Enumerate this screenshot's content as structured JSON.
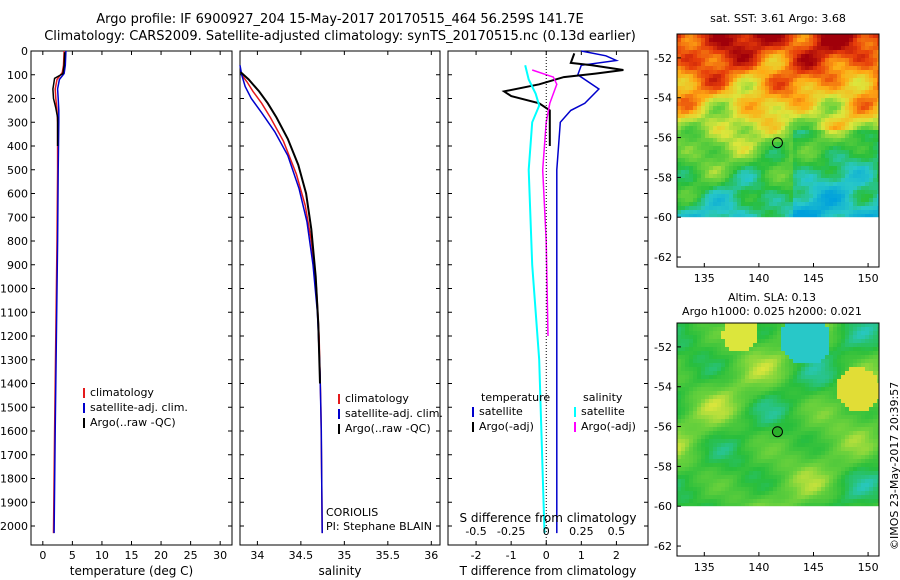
{
  "header": {
    "title_line1": "Argo profile: IF 6900927_204 15-May-2017 20170515_464 56.259S 141.7E",
    "title_line2": "Climatology: CARS2009. Satellite-adjusted climatology: synTS_20170515.nc (0.13d earlier)"
  },
  "footer": {
    "timestamp": "©IMOS 23-May-2017 20:39:57"
  },
  "colors": {
    "red": "#e41a1c",
    "blue": "#0000cc",
    "black": "#000000",
    "cyan": "#00ffff",
    "magenta": "#ff00ff"
  },
  "chart_data": [
    {
      "id": "temperature",
      "type": "line",
      "xlabel": "temperature (deg C)",
      "ylabel": "",
      "xlim": [
        -2,
        32
      ],
      "ylim": [
        2080,
        0
      ],
      "x_ticks": [
        0,
        5,
        10,
        15,
        20,
        25,
        30
      ],
      "y_ticks": [
        0,
        100,
        200,
        300,
        400,
        500,
        600,
        700,
        800,
        900,
        1000,
        1100,
        1200,
        1300,
        1400,
        1500,
        1600,
        1700,
        1800,
        1900,
        2000
      ],
      "legend": [
        "climatology",
        "satellite-adj. clim.",
        "Argo(..raw -QC)"
      ],
      "series": [
        {
          "name": "climatology",
          "color": "red",
          "width": 1.5,
          "points": [
            [
              3.6,
              0
            ],
            [
              3.5,
              60
            ],
            [
              3.3,
              90
            ],
            [
              2.4,
              120
            ],
            [
              2.1,
              160
            ],
            [
              2.2,
              200
            ],
            [
              2.4,
              250
            ],
            [
              2.5,
              300
            ],
            [
              2.5,
              500
            ],
            [
              2.4,
              800
            ],
            [
              2.2,
              1200
            ],
            [
              2.0,
              1600
            ],
            [
              1.8,
              2030
            ]
          ]
        },
        {
          "name": "satellite-adj. clim.",
          "color": "blue",
          "width": 1.5,
          "points": [
            [
              3.9,
              0
            ],
            [
              3.8,
              60
            ],
            [
              3.6,
              95
            ],
            [
              2.8,
              120
            ],
            [
              2.5,
              160
            ],
            [
              2.6,
              200
            ],
            [
              2.7,
              250
            ],
            [
              2.7,
              300
            ],
            [
              2.6,
              500
            ],
            [
              2.5,
              800
            ],
            [
              2.3,
              1200
            ],
            [
              2.1,
              1600
            ],
            [
              1.9,
              2030
            ]
          ]
        },
        {
          "name": "Argo(..raw -QC)",
          "color": "black",
          "width": 1.5,
          "points": [
            [
              3.7,
              5
            ],
            [
              3.6,
              60
            ],
            [
              3.4,
              95
            ],
            [
              2.0,
              115
            ],
            [
              1.7,
              160
            ],
            [
              1.8,
              200
            ],
            [
              2.2,
              240
            ],
            [
              2.5,
              280
            ],
            [
              2.5,
              400
            ]
          ]
        }
      ]
    },
    {
      "id": "salinity",
      "type": "line",
      "xlabel": "salinity",
      "ylabel": "",
      "xlim": [
        33.8,
        36.1
      ],
      "ylim": [
        2080,
        0
      ],
      "x_ticks": [
        34,
        34.5,
        35,
        35.5,
        36
      ],
      "x_tick_labels": [
        "34",
        "34.5",
        "35",
        "35.5",
        "36"
      ],
      "legend": [
        "climatology",
        "satellite-adj. clim.",
        "Argo(..raw -QC)"
      ],
      "annotation": [
        "CORIOLIS",
        "PI: Stephane BLAIN"
      ],
      "series": [
        {
          "name": "climatology",
          "color": "red",
          "width": 1.5,
          "points": [
            [
              33.82,
              100
            ],
            [
              33.88,
              130
            ],
            [
              33.95,
              170
            ],
            [
              34.05,
              220
            ],
            [
              34.15,
              280
            ],
            [
              34.3,
              380
            ],
            [
              34.45,
              520
            ],
            [
              34.55,
              650
            ],
            [
              34.62,
              800
            ],
            [
              34.68,
              1000
            ],
            [
              34.71,
              1200
            ],
            [
              34.73,
              1500
            ],
            [
              34.74,
              1800
            ],
            [
              34.745,
              2030
            ]
          ]
        },
        {
          "name": "satellite-adj. clim.",
          "color": "blue",
          "width": 1.5,
          "points": [
            [
              33.8,
              60
            ],
            [
              33.82,
              100
            ],
            [
              33.86,
              150
            ],
            [
              33.93,
              200
            ],
            [
              34.05,
              260
            ],
            [
              34.2,
              340
            ],
            [
              34.35,
              440
            ],
            [
              34.48,
              580
            ],
            [
              34.57,
              720
            ],
            [
              34.64,
              900
            ],
            [
              34.69,
              1100
            ],
            [
              34.72,
              1350
            ],
            [
              34.735,
              1600
            ],
            [
              34.74,
              1800
            ],
            [
              34.745,
              2030
            ]
          ]
        },
        {
          "name": "Argo(..raw -QC)",
          "color": "black",
          "width": 2,
          "points": [
            [
              33.81,
              90
            ],
            [
              33.9,
              120
            ],
            [
              34.02,
              170
            ],
            [
              34.12,
              220
            ],
            [
              34.22,
              280
            ],
            [
              34.35,
              370
            ],
            [
              34.47,
              480
            ],
            [
              34.56,
              600
            ],
            [
              34.62,
              750
            ],
            [
              34.67,
              950
            ],
            [
              34.7,
              1150
            ],
            [
              34.72,
              1400
            ]
          ]
        }
      ]
    },
    {
      "id": "difference",
      "type": "line",
      "xlabel": "T difference from climatology",
      "xlabel2": "S difference from climatology",
      "ylabel": "",
      "xlim": [
        -2.8,
        2.9
      ],
      "ylim": [
        2080,
        0
      ],
      "x_ticks": [
        -2,
        -1,
        0,
        1,
        2
      ],
      "x_tick_labels": [
        "-2",
        "-1",
        "0",
        "1",
        "2"
      ],
      "s_ticks": [
        -2,
        -1,
        0,
        1,
        2
      ],
      "s_tick_labels": [
        "-0.5",
        "-0.25",
        "0",
        "0.25",
        "0.5"
      ],
      "legend_headers": [
        "temperature",
        "salinity"
      ],
      "legend": [
        "satellite",
        "Argo(-adj)",
        "satellite",
        "Argo(-adj)"
      ],
      "series": [
        {
          "name": "temperature satellite",
          "color": "blue",
          "width": 1.5,
          "points": [
            [
              1.0,
              0
            ],
            [
              1.7,
              20
            ],
            [
              2.0,
              40
            ],
            [
              1.0,
              60
            ],
            [
              0.9,
              100
            ],
            [
              1.5,
              160
            ],
            [
              1.1,
              220
            ],
            [
              0.7,
              250
            ],
            [
              0.4,
              300
            ],
            [
              0.3,
              500
            ],
            [
              0.3,
              1000
            ],
            [
              0.3,
              1500
            ],
            [
              0.3,
              2030
            ]
          ]
        },
        {
          "name": "temperature Argo(-adj)",
          "color": "black",
          "width": 2,
          "points": [
            [
              0.8,
              10
            ],
            [
              0.7,
              50
            ],
            [
              1.3,
              60
            ],
            [
              2.2,
              80
            ],
            [
              1.4,
              95
            ],
            [
              0.5,
              110
            ],
            [
              -0.2,
              140
            ],
            [
              -1.2,
              170
            ],
            [
              -1.0,
              190
            ],
            [
              -0.2,
              220
            ],
            [
              0.1,
              250
            ],
            [
              0.1,
              400
            ]
          ]
        },
        {
          "name": "salinity satellite",
          "color": "cyan",
          "width": 2,
          "points": [
            [
              -0.6,
              60
            ],
            [
              -0.5,
              120
            ],
            [
              -0.3,
              180
            ],
            [
              -0.2,
              230
            ],
            [
              -0.4,
              300
            ],
            [
              -0.5,
              500
            ],
            [
              -0.4,
              900
            ],
            [
              -0.2,
              1300
            ],
            [
              -0.05,
              2030
            ]
          ]
        },
        {
          "name": "salinity Argo(-adj)",
          "color": "magenta",
          "width": 1.5,
          "points": [
            [
              -0.4,
              80
            ],
            [
              0.2,
              110
            ],
            [
              0.3,
              140
            ],
            [
              0.1,
              220
            ],
            [
              0.0,
              300
            ],
            [
              -0.1,
              500
            ],
            [
              0.0,
              800
            ],
            [
              0.05,
              1200
            ]
          ]
        }
      ]
    },
    {
      "id": "sst_map",
      "type": "heatmap",
      "title": "sat. SST: 3.61  Argo: 3.68",
      "xlim": [
        132.5,
        151
      ],
      "ylim": [
        -62.5,
        -50.8
      ],
      "x_ticks": [
        135,
        140,
        145,
        150
      ],
      "y_ticks": [
        -52,
        -54,
        -56,
        -58,
        -60,
        -62
      ],
      "marker": {
        "lon": 141.7,
        "lat": -56.259
      }
    },
    {
      "id": "sla_map",
      "type": "heatmap",
      "title": "Altim. SLA: 0.13",
      "subtitle": "Argo h1000: 0.025 h2000: 0.021",
      "xlim": [
        132.5,
        151
      ],
      "ylim": [
        -62.5,
        -50.8
      ],
      "x_ticks": [
        135,
        140,
        145,
        150
      ],
      "y_ticks": [
        -52,
        -54,
        -56,
        -58,
        -60,
        -62
      ],
      "marker": {
        "lon": 141.7,
        "lat": -56.259
      }
    }
  ]
}
